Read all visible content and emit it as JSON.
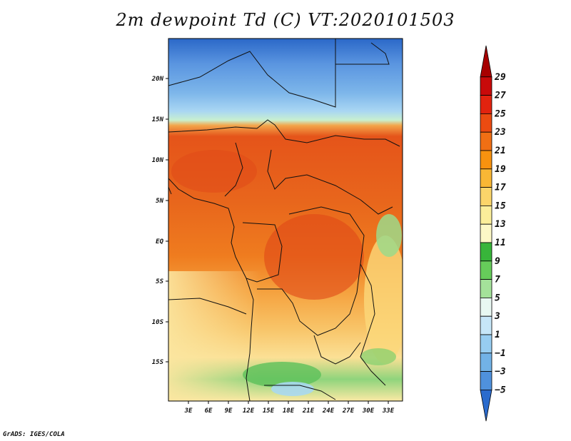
{
  "title": "2m dewpoint Td (C) VT:2020101503",
  "credit": "GrADS: IGES/COLA",
  "colors": {
    "frame": "#000000",
    "boundary": "#111111"
  },
  "axes": {
    "x_ticks": [
      "3E",
      "6E",
      "9E",
      "12E",
      "15E",
      "18E",
      "21E",
      "24E",
      "27E",
      "30E",
      "33E"
    ],
    "y_ticks": [
      "20N",
      "15N",
      "10N",
      "5N",
      "EQ",
      "5S",
      "10S",
      "15S"
    ]
  },
  "colorbar": {
    "labels": [
      "29",
      "27",
      "25",
      "23",
      "21",
      "19",
      "17",
      "15",
      "13",
      "11",
      "9",
      "7",
      "5",
      "3",
      "1",
      "−1",
      "−3",
      "−5"
    ],
    "colors": [
      "#a70000",
      "#c80a0a",
      "#e2230f",
      "#eb4b11",
      "#f06f14",
      "#f7920f",
      "#f9b735",
      "#fbd56a",
      "#fbee9a",
      "#fcf8c6",
      "#38b53a",
      "#66cc5a",
      "#a4e29a",
      "#e8f8f2",
      "#c6e6f8",
      "#97cdf1",
      "#72b2e6",
      "#4f91dc",
      "#2b6bcd"
    ]
  }
}
